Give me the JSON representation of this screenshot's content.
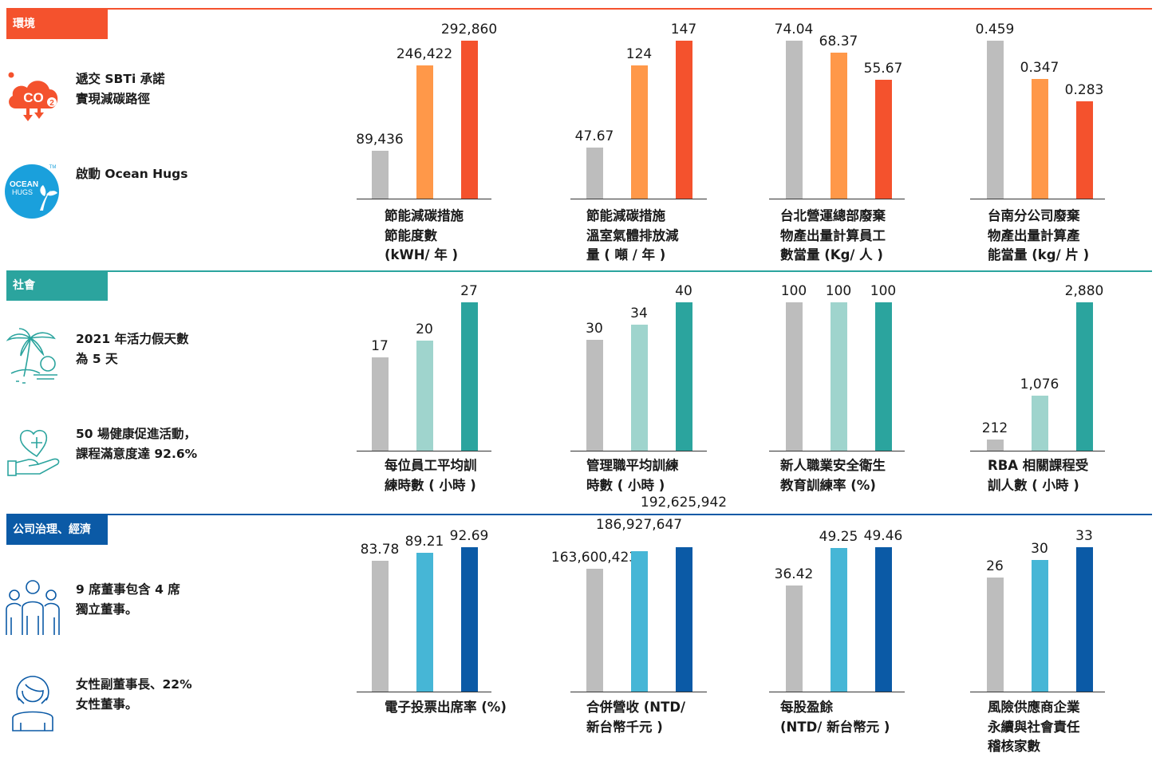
{
  "colors": {
    "env_accent": "#f4522d",
    "env_mid": "#ff9849",
    "soc_accent": "#2ba49e",
    "soc_mid": "#9fd4cd",
    "gov_accent": "#0b5aa6",
    "gov_mid": "#46b6d6",
    "base_gray": "#bdbdbd"
  },
  "sections": [
    {
      "tag": "環境",
      "items": [
        {
          "icon": "co2-cloud-icon",
          "text": [
            "遞交 SBTi 承諾",
            "實現減碳路徑"
          ]
        },
        {
          "icon": "ocean-hugs-logo-icon",
          "text": [
            "啟動 Ocean Hugs"
          ]
        }
      ],
      "ocean_logo_text": [
        "OCEAN",
        "HUGS",
        "TM"
      ],
      "charts": [
        {
          "type": "bar",
          "values": [
            89436,
            246422,
            292860
          ],
          "labels": [
            "89,436",
            "246,422",
            "292,860"
          ],
          "caption": [
            "節能減碳措施",
            "節能度數",
            "(kWH/ 年 )"
          ]
        },
        {
          "type": "bar",
          "values": [
            47.67,
            124,
            147
          ],
          "labels": [
            "47.67",
            "124",
            "147"
          ],
          "caption": [
            "節能減碳措施",
            "溫室氣體排放減",
            "量 ( 噸 / 年 )"
          ]
        },
        {
          "type": "bar",
          "values": [
            74.04,
            68.37,
            55.67
          ],
          "labels": [
            "74.04",
            "68.37",
            "55.67"
          ],
          "caption": [
            "台北營運總部廢棄",
            "物產出量計算員工",
            "數當量 (Kg/ 人 )"
          ]
        },
        {
          "type": "bar",
          "values": [
            0.459,
            0.347,
            0.283
          ],
          "labels": [
            "0.459",
            "0.347",
            "0.283"
          ],
          "caption": [
            "台南分公司廢棄",
            "物產出量計算產",
            "能當量 (kg/ 片 )"
          ]
        }
      ]
    },
    {
      "tag": "社會",
      "items": [
        {
          "icon": "palm-tree-icon",
          "text": [
            "2021 年活力假天數",
            "為 5 天"
          ]
        },
        {
          "icon": "heart-hand-icon",
          "text": [
            "50 場健康促進活動，",
            "課程滿意度達 92.6%"
          ]
        }
      ],
      "charts": [
        {
          "type": "bar",
          "values": [
            17,
            20,
            27
          ],
          "labels": [
            "17",
            "20",
            "27"
          ],
          "caption": [
            "每位員工平均訓",
            "練時數 ( 小時 )"
          ]
        },
        {
          "type": "bar",
          "values": [
            30,
            34,
            40
          ],
          "labels": [
            "30",
            "34",
            "40"
          ],
          "caption": [
            "管理職平均訓練",
            "時數 ( 小時 )"
          ]
        },
        {
          "type": "bar",
          "values": [
            100,
            100,
            100
          ],
          "labels": [
            "100",
            "100",
            "100"
          ],
          "caption": [
            "新人職業安全衛生",
            "教育訓練率 (%)"
          ]
        },
        {
          "type": "bar",
          "values": [
            212,
            1076,
            2880
          ],
          "labels": [
            "212",
            "1,076",
            "2,880"
          ],
          "caption": [
            "RBA 相關課程受",
            "訓人數 ( 小時 )"
          ]
        }
      ]
    },
    {
      "tag": "公司治理、經濟",
      "items": [
        {
          "icon": "board-members-icon",
          "text": [
            "9 席董事包含 4 席",
            "獨立董事。"
          ]
        },
        {
          "icon": "female-director-icon",
          "text": [
            "女性副董事長、22%",
            "女性董事。"
          ]
        }
      ],
      "charts": [
        {
          "type": "bar",
          "values": [
            83.78,
            89.21,
            92.69
          ],
          "labels": [
            "83.78",
            "89.21",
            "92.69"
          ],
          "caption": [
            "電子投票出席率 (%)"
          ]
        },
        {
          "type": "bar",
          "values": [
            163600423,
            186927647,
            192625942
          ],
          "labels": [
            "163,600,423",
            "186,927,647",
            "192,625,942"
          ],
          "caption": [
            "合併營收 (NTD/",
            "新台幣千元 )"
          ]
        },
        {
          "type": "bar",
          "values": [
            36.42,
            49.25,
            49.46
          ],
          "labels": [
            "36.42",
            "49.25",
            "49.46"
          ],
          "caption": [
            "每股盈餘",
            "(NTD/ 新台幣元 )"
          ]
        },
        {
          "type": "bar",
          "values": [
            26,
            30,
            33
          ],
          "labels": [
            "26",
            "30",
            "33"
          ],
          "caption": [
            "風險供應商企業",
            "永續與社會責任",
            "稽核家數"
          ]
        }
      ]
    }
  ],
  "chart_data": [
    {
      "type": "bar",
      "series": [
        {
          "values": [
            89436,
            246422,
            292860
          ]
        }
      ],
      "title": "節能減碳措施 節能度數 (kWH/ 年 )"
    },
    {
      "type": "bar",
      "series": [
        {
          "values": [
            47.67,
            124,
            147
          ]
        }
      ],
      "title": "節能減碳措施 溫室氣體排放減量 ( 噸 / 年 )"
    },
    {
      "type": "bar",
      "series": [
        {
          "values": [
            74.04,
            68.37,
            55.67
          ]
        }
      ],
      "title": "台北營運總部廢棄物產出量計算員工數當量 (Kg/ 人 )"
    },
    {
      "type": "bar",
      "series": [
        {
          "values": [
            0.459,
            0.347,
            0.283
          ]
        }
      ],
      "title": "台南分公司廢棄物產出量計算產能當量 (kg/ 片 )"
    },
    {
      "type": "bar",
      "series": [
        {
          "values": [
            17,
            20,
            27
          ]
        }
      ],
      "title": "每位員工平均訓練時數 ( 小時 )"
    },
    {
      "type": "bar",
      "series": [
        {
          "values": [
            30,
            34,
            40
          ]
        }
      ],
      "title": "管理職平均訓練時數 ( 小時 )"
    },
    {
      "type": "bar",
      "series": [
        {
          "values": [
            100,
            100,
            100
          ]
        }
      ],
      "title": "新人職業安全衛生教育訓練率 (%)"
    },
    {
      "type": "bar",
      "series": [
        {
          "values": [
            212,
            1076,
            2880
          ]
        }
      ],
      "title": "RBA 相關課程受訓人數 ( 小時 )"
    },
    {
      "type": "bar",
      "series": [
        {
          "values": [
            83.78,
            89.21,
            92.69
          ]
        }
      ],
      "title": "電子投票出席率 (%)"
    },
    {
      "type": "bar",
      "series": [
        {
          "values": [
            163600423,
            186927647,
            192625942
          ]
        }
      ],
      "title": "合併營收 (NTD/ 新台幣千元 )"
    },
    {
      "type": "bar",
      "series": [
        {
          "values": [
            36.42,
            49.25,
            49.46
          ]
        }
      ],
      "title": "每股盈餘 (NTD/ 新台幣元 )"
    },
    {
      "type": "bar",
      "series": [
        {
          "values": [
            26,
            30,
            33
          ]
        }
      ],
      "title": "風險供應商企業永續與社會責任稽核家數"
    }
  ]
}
